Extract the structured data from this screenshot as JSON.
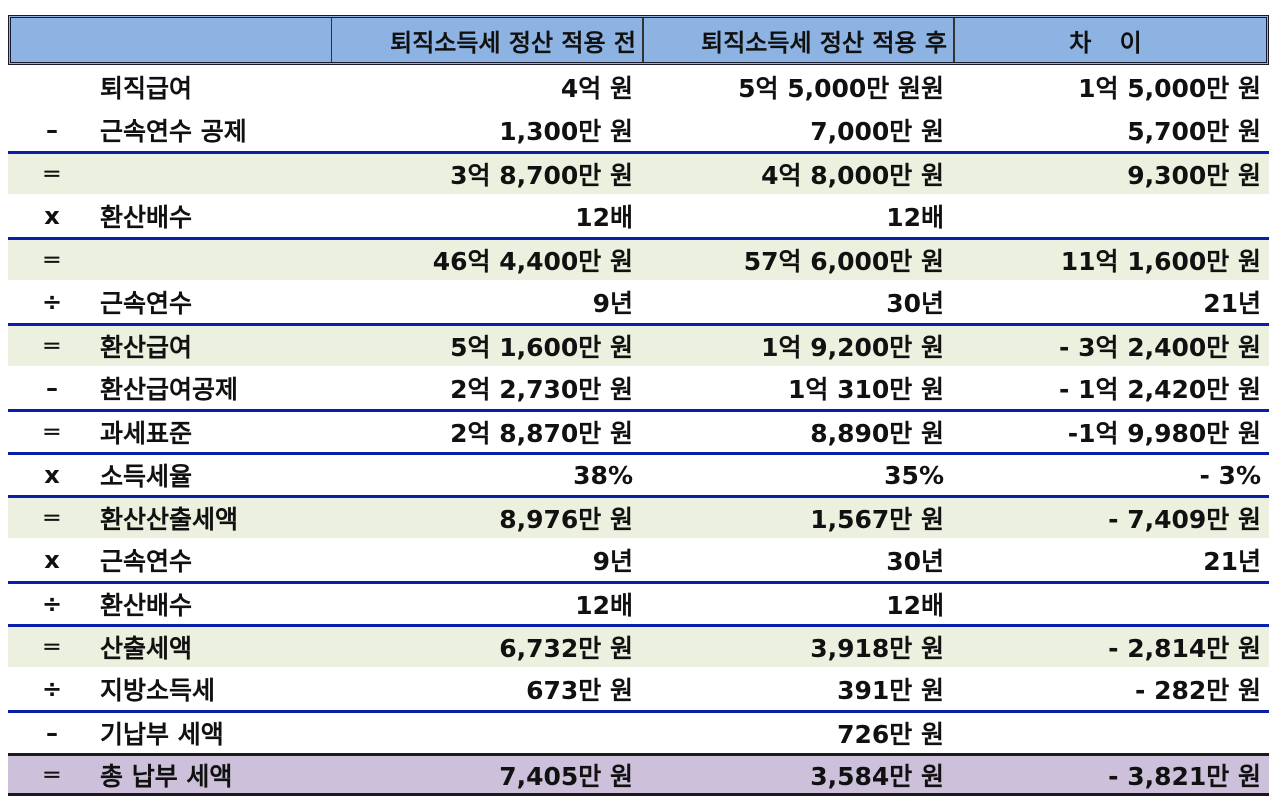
{
  "header": {
    "col_blank": "",
    "col_before": "퇴직소득세 정산 적용 전",
    "col_after": "퇴직소득세 정산 적용 후",
    "col_diff": "차 이"
  },
  "colors": {
    "header_bg": "#8db3e2",
    "shaded_row_bg": "#ebf1de",
    "total_row_bg": "#ccc0da",
    "divider_blue": "#0a1ea8",
    "divider_black": "#1a1a1a"
  },
  "rows": [
    {
      "op": "",
      "label": "퇴직급여",
      "before": "4억 원",
      "after": "5억 5,000만 원원",
      "diff": "1억 5,000만 원"
    },
    {
      "op": "–",
      "label": "근속연수 공제",
      "before": "1,300만 원",
      "after": "7,000만 원",
      "diff": "5,700만 원"
    },
    {
      "op": "═",
      "label": "",
      "before": "3억 8,700만 원",
      "after": "4억 8,000만 원",
      "diff": "9,300만 원"
    },
    {
      "op": "x",
      "label": "환산배수",
      "before": "12배",
      "after": "12배",
      "diff": ""
    },
    {
      "op": "═",
      "label": "",
      "before": "46억 4,400만 원",
      "after": "57억 6,000만 원",
      "diff": "11억 1,600만 원"
    },
    {
      "op": "÷",
      "label": "근속연수",
      "before": "9년",
      "after": "30년",
      "diff": "21년"
    },
    {
      "op": "═",
      "label": "환산급여",
      "before": "5억 1,600만 원",
      "after": "1억 9,200만 원",
      "diff": "- 3억 2,400만 원"
    },
    {
      "op": "–",
      "label": "환산급여공제",
      "before": "2억 2,730만 원",
      "after": "1억 310만 원",
      "diff": "- 1억 2,420만 원"
    },
    {
      "op": "═",
      "label": "과세표준",
      "before": "2억 8,870만 원",
      "after": "8,890만 원",
      "diff": "-1억 9,980만 원"
    },
    {
      "op": "x",
      "label": "소득세율",
      "before": "38%",
      "after": "35%",
      "diff": "- 3%"
    },
    {
      "op": "═",
      "label": "환산산출세액",
      "before": "8,976만 원",
      "after": "1,567만 원",
      "diff": "- 7,409만 원"
    },
    {
      "op": "x",
      "label": "근속연수",
      "before": "9년",
      "after": "30년",
      "diff": "21년"
    },
    {
      "op": "÷",
      "label": "환산배수",
      "before": "12배",
      "after": "12배",
      "diff": ""
    },
    {
      "op": "═",
      "label": "산출세액",
      "before": "6,732만 원",
      "after": "3,918만 원",
      "diff": "- 2,814만 원"
    },
    {
      "op": "÷",
      "label": "지방소득세",
      "before": "673만 원",
      "after": "391만 원",
      "diff": "- 282만 원"
    },
    {
      "op": "–",
      "label": "기납부 세액",
      "before": "",
      "after": "726만 원",
      "diff": ""
    },
    {
      "op": "═",
      "label": "총 납부 세액",
      "before": "7,405만 원",
      "after": "3,584만 원",
      "diff": "- 3,821만 원"
    }
  ]
}
